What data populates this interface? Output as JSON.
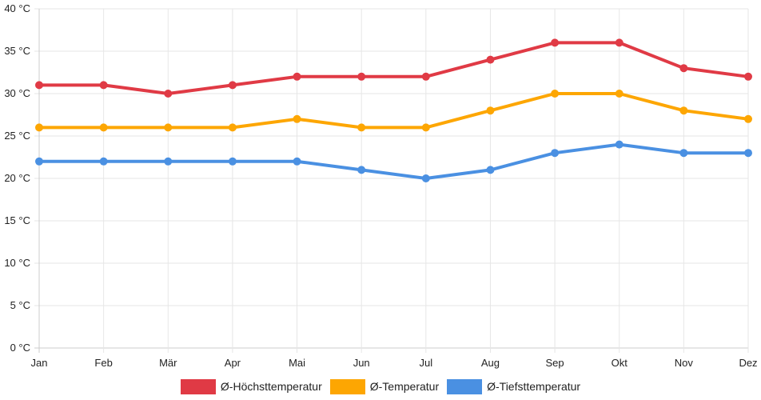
{
  "chart_data": {
    "type": "line",
    "categories": [
      "Jan",
      "Feb",
      "Mär",
      "Apr",
      "Mai",
      "Jun",
      "Jul",
      "Aug",
      "Sep",
      "Okt",
      "Nov",
      "Dez"
    ],
    "series": [
      {
        "name": "Ø-Höchsttemperatur",
        "color": "#e03a45",
        "values": [
          31,
          31,
          30,
          31,
          32,
          32,
          32,
          34,
          36,
          36,
          33,
          32
        ]
      },
      {
        "name": "Ø-Temperatur",
        "color": "#fda602",
        "values": [
          26,
          26,
          26,
          26,
          27,
          26,
          26,
          28,
          30,
          30,
          28,
          27
        ]
      },
      {
        "name": "Ø-Tiefsttemperatur",
        "color": "#4a90e2",
        "values": [
          22,
          22,
          22,
          22,
          22,
          21,
          20,
          21,
          23,
          24,
          23,
          23
        ]
      }
    ],
    "ylim": [
      0,
      40
    ],
    "yticks": [
      0,
      5,
      10,
      15,
      20,
      25,
      30,
      35,
      40
    ],
    "yunit": "°C",
    "ytick_labels": [
      "0 °C",
      "5 °C",
      "10 °C",
      "15 °C",
      "20 °C",
      "25 °C",
      "30 °C",
      "35 °C",
      "40 °C"
    ],
    "grid": true,
    "legend": "bottom-center"
  }
}
